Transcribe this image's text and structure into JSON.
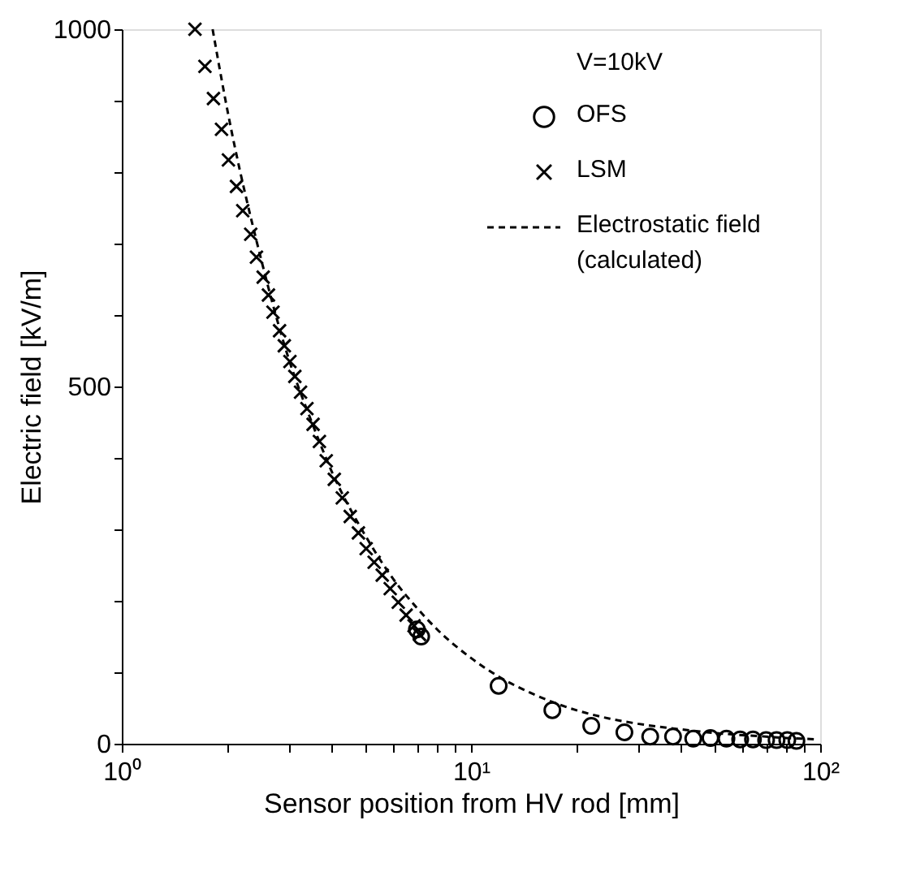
{
  "chart_data": {
    "type": "scatter",
    "xlabel": "Sensor position from HV rod [mm]",
    "ylabel": "Electric field [kV/m]",
    "legend_title": "V=10kV",
    "legend": "top right",
    "log": "x",
    "grid": false,
    "xlim": [
      1,
      100
    ],
    "ylim": [
      0,
      1000
    ],
    "xticks": [
      {
        "value": 1,
        "label": "10⁰"
      },
      {
        "value": 2,
        "label": null
      },
      {
        "value": 3,
        "label": null
      },
      {
        "value": 4,
        "label": null
      },
      {
        "value": 5,
        "label": null
      },
      {
        "value": 6,
        "label": null
      },
      {
        "value": 7,
        "label": null
      },
      {
        "value": 8,
        "label": null
      },
      {
        "value": 9,
        "label": null
      },
      {
        "value": 10,
        "label": "10¹"
      },
      {
        "value": 20,
        "label": null
      },
      {
        "value": 30,
        "label": null
      },
      {
        "value": 40,
        "label": null
      },
      {
        "value": 50,
        "label": null
      },
      {
        "value": 60,
        "label": null
      },
      {
        "value": 70,
        "label": null
      },
      {
        "value": 80,
        "label": null
      },
      {
        "value": 90,
        "label": null
      },
      {
        "value": 100,
        "label": "10²"
      }
    ],
    "yticks": [
      0,
      {
        "value": 100,
        "label": null
      },
      {
        "value": 200,
        "label": null
      },
      {
        "value": 300,
        "label": null
      },
      {
        "value": 400,
        "label": null
      },
      500,
      {
        "value": 600,
        "label": null
      },
      {
        "value": 700,
        "label": null
      },
      {
        "value": 800,
        "label": null
      },
      {
        "value": 900,
        "label": null
      },
      1000
    ],
    "series": [
      {
        "name": "OFS",
        "marker": "circle",
        "color": "#000000",
        "x": [
          7.0,
          7.2,
          12.0,
          17.1,
          22.1,
          27.5,
          32.6,
          37.9,
          43.3,
          48.5,
          53.9,
          59.0,
          64.2,
          70,
          75,
          80.5,
          85.5
        ],
        "values": [
          160,
          150,
          81,
          47,
          25,
          16,
          10,
          10,
          7,
          8,
          7,
          6,
          6,
          5,
          5,
          5,
          4
        ]
      },
      {
        "name": "LSM",
        "marker": "cross",
        "color": "#000000",
        "x": [
          1.62,
          1.73,
          1.83,
          1.93,
          2.02,
          2.13,
          2.22,
          2.34,
          2.43,
          2.54,
          2.63,
          2.71,
          2.83,
          2.92,
          3.03,
          3.13,
          3.25,
          3.39,
          3.53,
          3.68,
          3.85,
          4.06,
          4.28,
          4.51,
          4.76,
          5.01,
          5.28,
          5.57,
          5.87,
          6.19,
          6.52,
          6.87,
          7.12
        ],
        "values": [
          1000,
          948,
          903,
          860,
          817,
          780,
          746,
          713,
          681,
          653,
          628,
          604,
          578,
          557,
          535,
          514,
          492,
          469,
          447,
          423,
          396,
          370,
          344,
          318,
          295,
          273,
          254,
          236,
          217,
          198,
          180,
          165,
          153
        ]
      },
      {
        "name": "Electrostatic field\n(calculated)",
        "type": "line",
        "line_style": "dashed",
        "marker": "none",
        "color": "#000000",
        "x": [
          1.82,
          2.0,
          2.5,
          3.0,
          3.5,
          4.0,
          5.0,
          6.0,
          7.0,
          8.0,
          10,
          12,
          15,
          20,
          25,
          30,
          40,
          50,
          60,
          70,
          80,
          90,
          98
        ],
        "values": [
          1000,
          890,
          680,
          540,
          450,
          380,
          290,
          230,
          190,
          160,
          120,
          94,
          70,
          47,
          35,
          28,
          20,
          15,
          12,
          10,
          8,
          7,
          6
        ]
      }
    ]
  }
}
